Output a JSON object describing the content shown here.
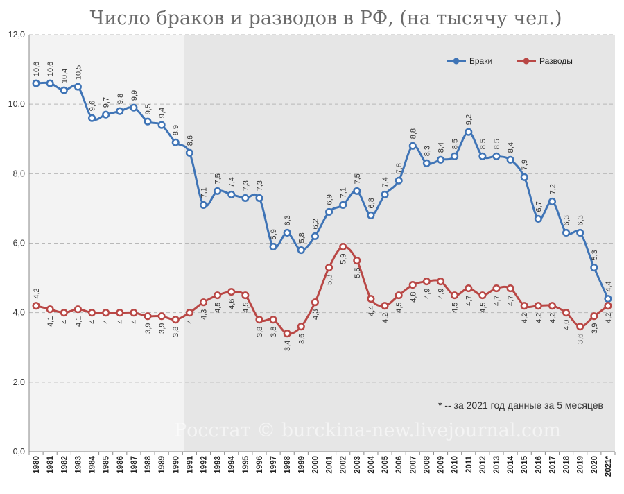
{
  "chart_data": {
    "type": "line",
    "title": "Число браков и разводов в РФ, (на тысячу чел.)",
    "categories": [
      "1980",
      "1981",
      "1982",
      "1983",
      "1984",
      "1985",
      "1986",
      "1987",
      "1988",
      "1989",
      "1990",
      "1991",
      "1992",
      "1993",
      "1994",
      "1995",
      "1996",
      "1997",
      "1998",
      "1999",
      "2000",
      "2001",
      "2002",
      "2003",
      "2004",
      "2005",
      "2006",
      "2007",
      "2008",
      "2009",
      "2010",
      "2011",
      "2012",
      "2013",
      "2014",
      "2015",
      "2016",
      "2017",
      "2018",
      "2019",
      "2020",
      "2021*"
    ],
    "series": [
      {
        "name": "Браки",
        "color": "#3f74b6",
        "values": [
          10.6,
          10.6,
          10.4,
          10.5,
          9.6,
          9.7,
          9.8,
          9.9,
          9.5,
          9.4,
          8.9,
          8.6,
          7.1,
          7.5,
          7.4,
          7.3,
          7.3,
          5.9,
          6.3,
          5.8,
          6.2,
          6.9,
          7.1,
          7.5,
          6.8,
          7.4,
          7.8,
          8.8,
          8.3,
          8.4,
          8.5,
          9.2,
          8.5,
          8.5,
          8.4,
          7.9,
          6.7,
          7.2,
          6.3,
          6.3,
          5.3,
          4.4
        ],
        "labels": [
          "10,6",
          "10,6",
          "10,4",
          "10,5",
          "9,6",
          "9,7",
          "9,8",
          "9,9",
          "9,5",
          "9,4",
          "8,9",
          "8,6",
          "7,1",
          "7,5",
          "7,4",
          "7,3",
          "7,3",
          "5,9",
          "6,3",
          "5,8",
          "6,2",
          "6,9",
          "7,1",
          "7,5",
          "6,8",
          "7,4",
          "7,8",
          "8,8",
          "8,3",
          "8,4",
          "8,5",
          "9,2",
          "8,5",
          "8,5",
          "8,4",
          "7,9",
          "6,7",
          "7,2",
          "6,3",
          "6,3",
          "5,3",
          "4,4"
        ]
      },
      {
        "name": "Разводы",
        "color": "#b94745",
        "values": [
          4.2,
          4.1,
          4.0,
          4.1,
          4.0,
          4.0,
          4.0,
          4.0,
          3.9,
          3.9,
          3.8,
          4.0,
          4.3,
          4.5,
          4.6,
          4.5,
          3.8,
          3.8,
          3.4,
          3.6,
          4.3,
          5.3,
          5.9,
          5.5,
          4.4,
          4.2,
          4.5,
          4.8,
          4.9,
          4.9,
          4.5,
          4.7,
          4.5,
          4.7,
          4.7,
          4.2,
          4.2,
          4.2,
          4.0,
          3.6,
          3.9,
          4.2
        ],
        "labels": [
          "4,2",
          "4,1",
          "4",
          "4,1",
          "4",
          "4",
          "4",
          "4",
          "3,9",
          "3,9",
          "3,8",
          "4",
          "4,3",
          "4,5",
          "4,6",
          "4,5",
          "3,8",
          "3,8",
          "3,4",
          "3,6",
          "4,3",
          "5,3",
          "5,9",
          "5,5",
          "4,4",
          "4,2",
          "4,5",
          "4,8",
          "4,9",
          "4,9",
          "4,5",
          "4,7",
          "4,5",
          "4,7",
          "4,7",
          "4,2",
          "4,2",
          "4,2",
          "4,0",
          "3,6",
          "3,9",
          "4,2"
        ]
      }
    ],
    "ylim": [
      0,
      12
    ],
    "yticks": [
      0,
      2,
      4,
      6,
      8,
      10,
      12
    ],
    "ytick_labels": [
      "0,0",
      "2,0",
      "4,0",
      "6,0",
      "8,0",
      "10,0",
      "12,0"
    ],
    "grid": "horizontal dashed",
    "legend": "top-right",
    "shaded_from": "1991",
    "note": "* -- за 2021 год данные за 5 месяцев",
    "watermark": "Росстат © burckina-new.livejournal.com",
    "colors": {
      "left_band": "#f3f3f3",
      "right_band": "#e6e6e6",
      "axis": "#888888"
    }
  }
}
